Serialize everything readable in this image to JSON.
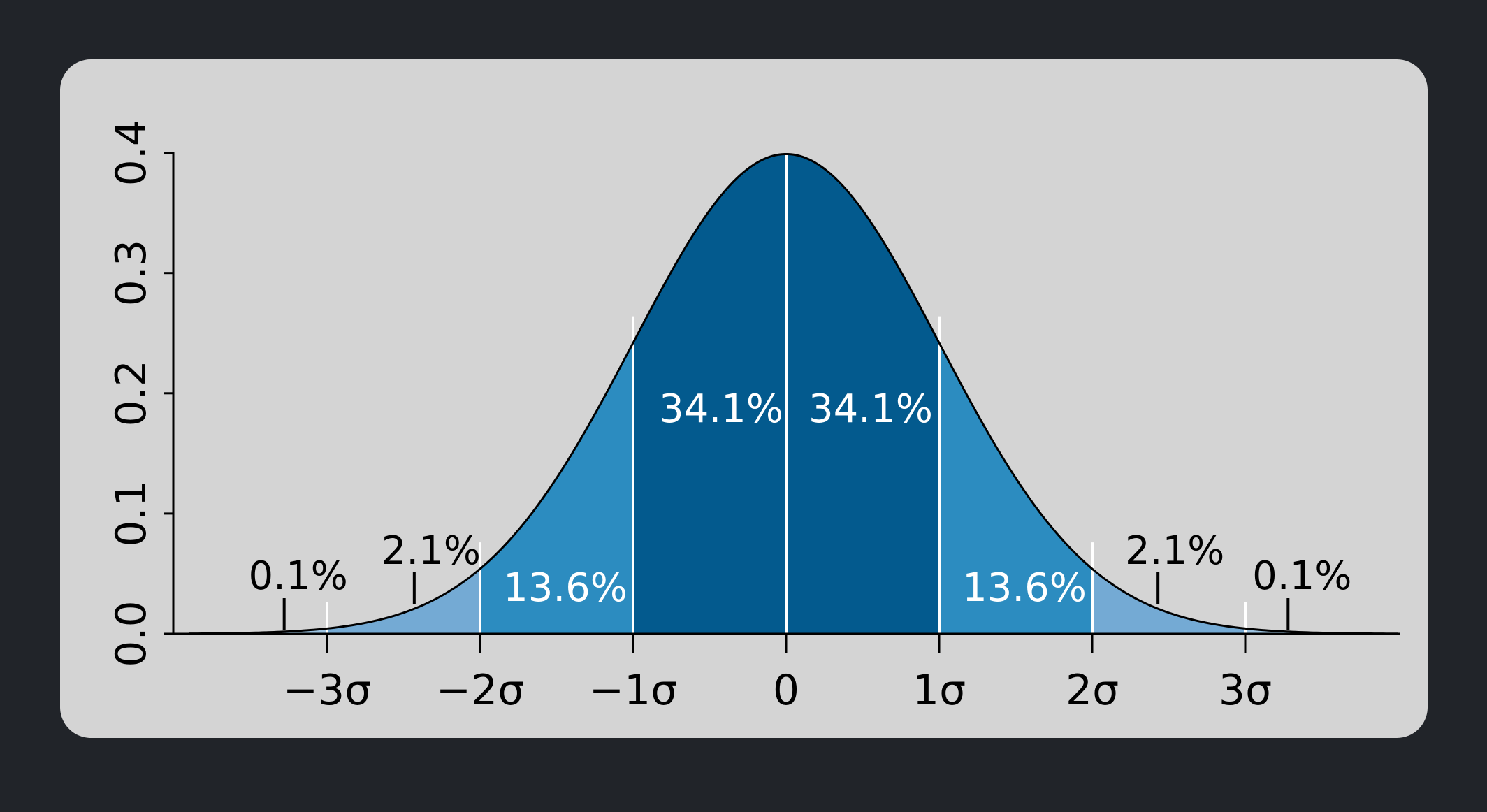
{
  "colors": {
    "page_background": "#212429",
    "card_background": "#d4d4d4",
    "band_within_1sd": "#035a8e",
    "band_1_to_2sd": "#2c8cc0",
    "band_2_to_3sd": "#74aad4",
    "band_beyond_3sd": "#9cc3e1",
    "curve": "#000000",
    "dividers": "#ffffff"
  },
  "chart_data": {
    "type": "area",
    "distribution": "standard normal density",
    "x_range": [
      -3.9,
      4.0
    ],
    "ylim": [
      0,
      0.4
    ],
    "yticks": [
      0.0,
      0.1,
      0.2,
      0.3,
      0.4
    ],
    "ytick_labels": [
      "0.0",
      "0.1",
      "0.2",
      "0.3",
      "0.4"
    ],
    "xticks": [
      -3,
      -2,
      -1,
      0,
      1,
      2,
      3
    ],
    "xtick_labels": [
      "−3σ",
      "−2σ",
      "−1σ",
      "0",
      "1σ",
      "2σ",
      "3σ"
    ],
    "dividers": [
      -3,
      -2,
      -1,
      0,
      1,
      2,
      3
    ],
    "bands": [
      {
        "from": -1,
        "to": 0,
        "label": "34.1%",
        "label_color": "#ffffff"
      },
      {
        "from": 0,
        "to": 1,
        "label": "34.1%",
        "label_color": "#ffffff"
      },
      {
        "from": -2,
        "to": -1,
        "label": "13.6%",
        "label_color": "#ffffff"
      },
      {
        "from": 1,
        "to": 2,
        "label": "13.6%",
        "label_color": "#ffffff"
      },
      {
        "from": -3,
        "to": -2,
        "label": "2.1%",
        "label_color": "#000000",
        "pointer_x": -2.43
      },
      {
        "from": 2,
        "to": 3,
        "label": "2.1%",
        "label_color": "#000000",
        "pointer_x": 2.43
      },
      {
        "from": -3.9,
        "to": -3,
        "label": "0.1%",
        "label_color": "#000000",
        "pointer_x": -3.28
      },
      {
        "from": 3,
        "to": 4.0,
        "label": "0.1%",
        "label_color": "#000000",
        "pointer_x": 3.28
      }
    ],
    "grid": false,
    "title": "",
    "xlabel": "",
    "ylabel": ""
  }
}
